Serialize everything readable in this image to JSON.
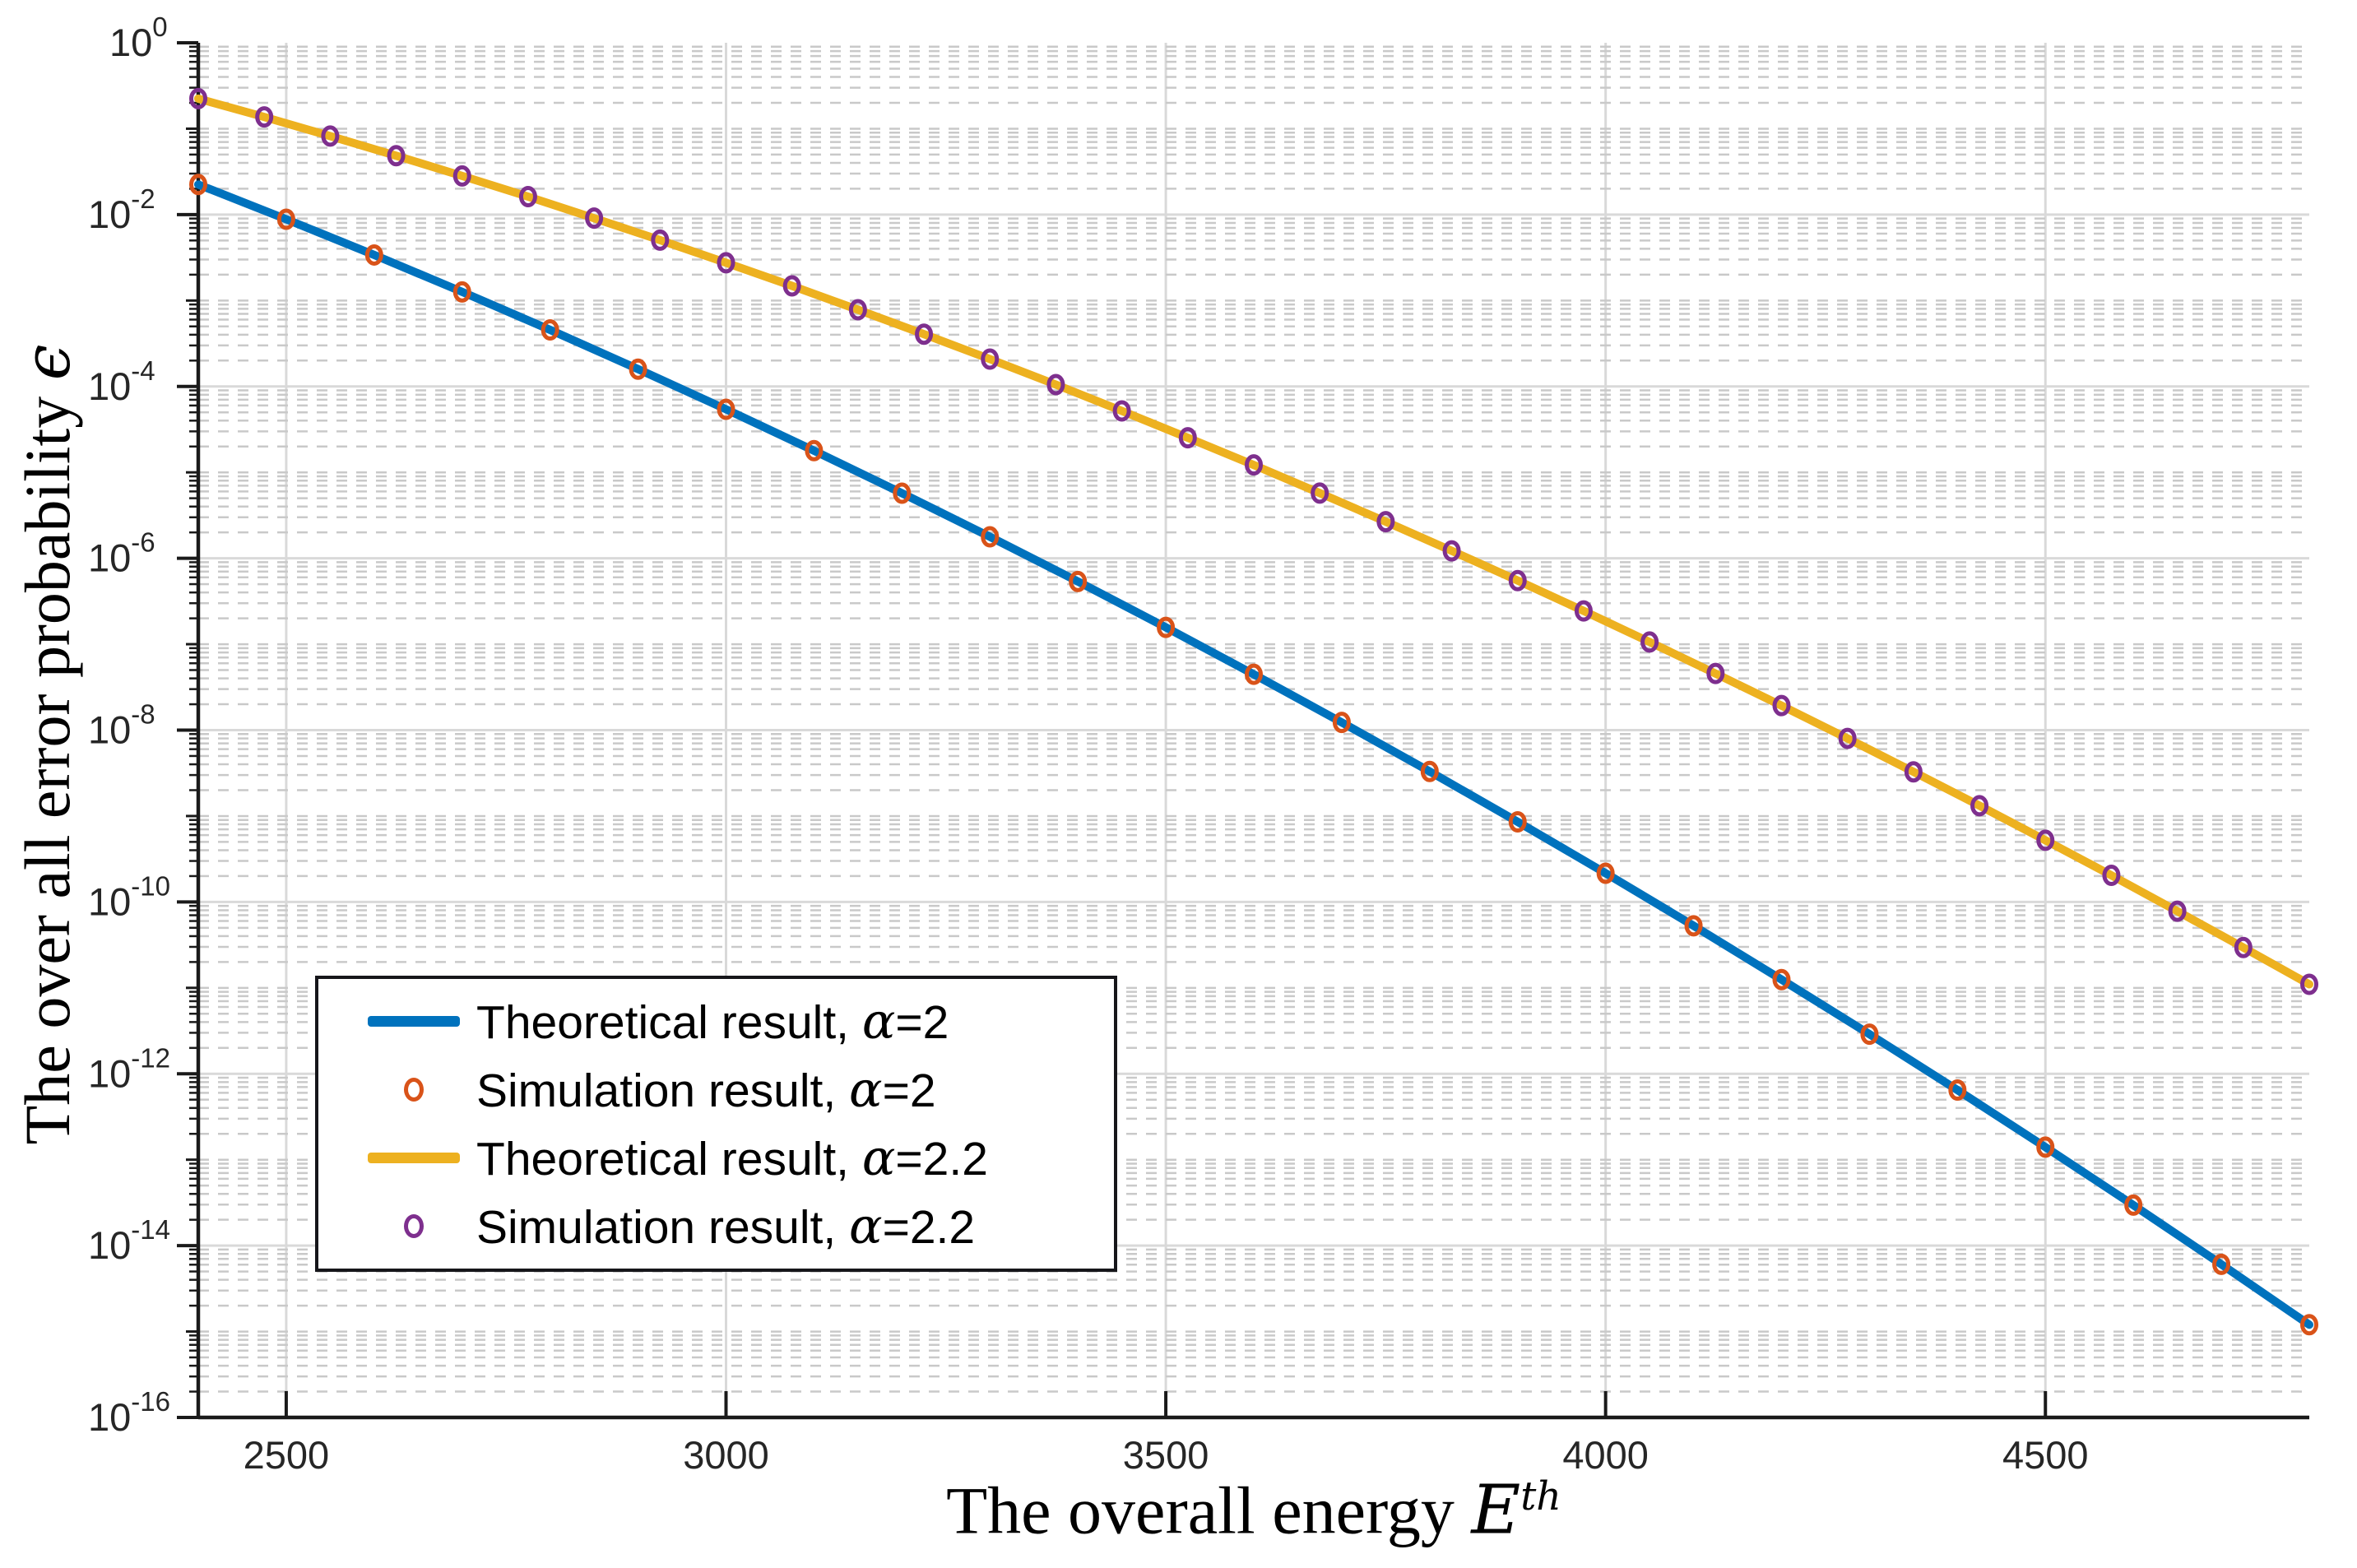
{
  "figure": {
    "background": "#ffffff"
  },
  "axis_labels": {
    "x_prefix": "The overall energy ",
    "x_math": "E",
    "x_sup": "th",
    "y_prefix": "The over all error probability ",
    "y_math": "ϵ"
  },
  "legend": {
    "position": "lower-left",
    "entries": [
      {
        "swatch": "line",
        "color": "#0072BD",
        "text": "Theoretical result, ",
        "math": "α",
        "suffix": "=2"
      },
      {
        "swatch": "marker",
        "color": "#D95319",
        "text": "Simulation result, ",
        "math": "α",
        "suffix": "=2"
      },
      {
        "swatch": "line",
        "color": "#EDB120",
        "text": "Theoretical result, ",
        "math": "α",
        "suffix": "=2.2"
      },
      {
        "swatch": "marker",
        "color": "#7E2F8E",
        "text": "Simulation result, ",
        "math": "α",
        "suffix": "=2.2"
      }
    ]
  },
  "chart_data": {
    "type": "line",
    "title": "",
    "xlabel": "The overall energy E^th",
    "ylabel": "The over all error probability ϵ",
    "x_axis": {
      "scale": "linear",
      "min": 2400,
      "max": 4800,
      "ticks": [
        2500,
        3000,
        3500,
        4000,
        4500
      ]
    },
    "y_axis": {
      "scale": "log",
      "min": 1e-16,
      "max": 1,
      "tick_exponents": [
        0,
        -2,
        -4,
        -6,
        -8,
        -10,
        -12,
        -14,
        -16
      ]
    },
    "grid": {
      "major": true,
      "minor": true,
      "major_color": "#d9d9d9",
      "minor_color": "#c9c9c9"
    },
    "series": [
      {
        "name": "Theoretical result, α=2",
        "style": "line",
        "color": "#0072BD",
        "line_width": 10,
        "x": [
          2400,
          2500,
          2600,
          2700,
          2800,
          2900,
          3000,
          3100,
          3200,
          3300,
          3400,
          3500,
          3600,
          3700,
          3800,
          3900,
          4000,
          4100,
          4200,
          4300,
          4400,
          4500,
          4600,
          4700,
          4800
        ],
        "y": [
          0.0224,
          0.00884,
          0.00339,
          0.00126,
          0.000455,
          0.000159,
          5.42e-05,
          1.79e-05,
          5.72e-06,
          1.78e-06,
          5.37e-07,
          1.57e-07,
          4.46e-08,
          1.23e-08,
          3.3e-09,
          8.56e-10,
          2.16e-10,
          5.28e-11,
          1.25e-11,
          2.89e-12,
          6.47e-13,
          1.4e-13,
          2.96e-14,
          6.05e-15,
          1.2e-15
        ]
      },
      {
        "name": "Simulation result, α=2",
        "style": "markers",
        "marker": "circle",
        "color": "#D95319",
        "x": [
          2400,
          2500,
          2600,
          2700,
          2800,
          2900,
          3000,
          3100,
          3200,
          3300,
          3400,
          3500,
          3600,
          3700,
          3800,
          3900,
          4000,
          4100,
          4200,
          4300,
          4400,
          4500,
          4600,
          4700,
          4800
        ],
        "y": [
          0.0224,
          0.00884,
          0.00339,
          0.00126,
          0.000455,
          0.000159,
          5.42e-05,
          1.79e-05,
          5.72e-06,
          1.78e-06,
          5.37e-07,
          1.57e-07,
          4.46e-08,
          1.23e-08,
          3.3e-09,
          8.56e-10,
          2.16e-10,
          5.28e-11,
          1.25e-11,
          2.89e-12,
          6.47e-13,
          1.4e-13,
          2.96e-14,
          6.05e-15,
          1.2e-15
        ]
      },
      {
        "name": "Theoretical result, α=2.2",
        "style": "line",
        "color": "#EDB120",
        "line_width": 10,
        "x": [
          2400,
          2475,
          2550,
          2625,
          2700,
          2775,
          2850,
          2925,
          3000,
          3075,
          3150,
          3225,
          3300,
          3375,
          3450,
          3525,
          3600,
          3675,
          3750,
          3825,
          3900,
          3975,
          4050,
          4125,
          4200,
          4275,
          4350,
          4425,
          4500,
          4575,
          4650,
          4725,
          4800
        ],
        "y": [
          0.224,
          0.137,
          0.0821,
          0.0485,
          0.0282,
          0.0162,
          0.0091,
          0.00505,
          0.00275,
          0.00148,
          0.000781,
          0.000406,
          0.000208,
          0.000105,
          5.19e-05,
          2.53e-05,
          1.22e-05,
          5.74e-06,
          2.67e-06,
          1.22e-06,
          5.5e-07,
          2.44e-07,
          1.06e-07,
          4.56e-08,
          1.93e-08,
          8.01e-09,
          3.27e-09,
          1.32e-09,
          5.22e-10,
          2.04e-10,
          7.81e-11,
          2.95e-11,
          1.1e-11
        ]
      },
      {
        "name": "Simulation result, α=2.2",
        "style": "markers",
        "marker": "circle",
        "color": "#7E2F8E",
        "x": [
          2400,
          2475,
          2550,
          2625,
          2700,
          2775,
          2850,
          2925,
          3000,
          3075,
          3150,
          3225,
          3300,
          3375,
          3450,
          3525,
          3600,
          3675,
          3750,
          3825,
          3900,
          3975,
          4050,
          4125,
          4200,
          4275,
          4350,
          4425,
          4500,
          4575,
          4650,
          4725,
          4800
        ],
        "y": [
          0.224,
          0.137,
          0.0821,
          0.0485,
          0.0282,
          0.0162,
          0.0091,
          0.00505,
          0.00275,
          0.00148,
          0.000781,
          0.000406,
          0.000208,
          0.000105,
          5.19e-05,
          2.53e-05,
          1.22e-05,
          5.74e-06,
          2.67e-06,
          1.22e-06,
          5.5e-07,
          2.44e-07,
          1.06e-07,
          4.56e-08,
          1.93e-08,
          8.01e-09,
          3.27e-09,
          1.32e-09,
          5.22e-10,
          2.04e-10,
          7.81e-11,
          2.95e-11,
          1.1e-11
        ]
      }
    ]
  }
}
